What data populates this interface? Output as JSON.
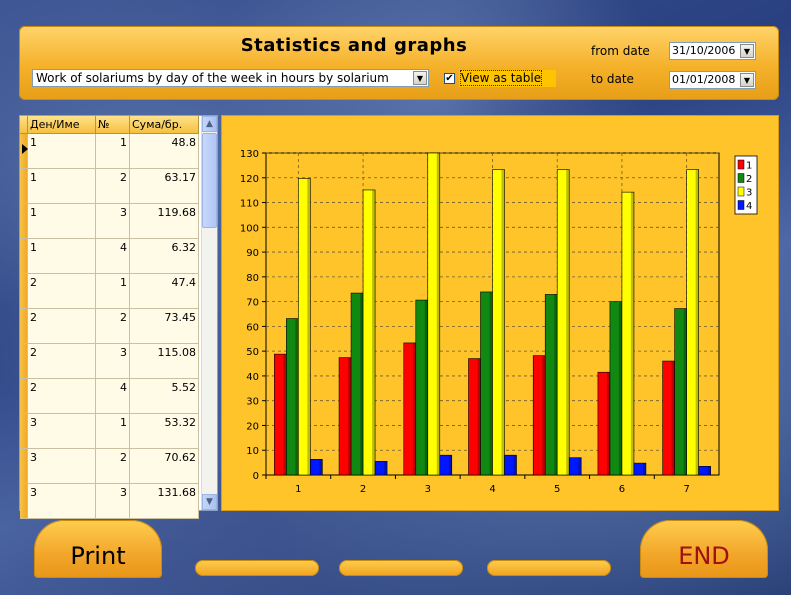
{
  "header": {
    "title": "Statistics and graphs",
    "report_value": "Work of solariums by day of the week in hours by solarium",
    "view_as_table_label": "View as table",
    "view_as_table_checked": true,
    "from_label": "from date",
    "from_value": "31/10/2006",
    "to_label": "to date",
    "to_value": "01/01/2008"
  },
  "table": {
    "columns": [
      "Ден/Име",
      "№",
      "Сума/бр."
    ],
    "rows": [
      [
        "1",
        "1",
        "48.8"
      ],
      [
        "1",
        "2",
        "63.17"
      ],
      [
        "1",
        "3",
        "119.68"
      ],
      [
        "1",
        "4",
        "6.32"
      ],
      [
        "2",
        "1",
        "47.4"
      ],
      [
        "2",
        "2",
        "73.45"
      ],
      [
        "2",
        "3",
        "115.08"
      ],
      [
        "2",
        "4",
        "5.52"
      ],
      [
        "3",
        "1",
        "53.32"
      ],
      [
        "3",
        "2",
        "70.62"
      ],
      [
        "3",
        "3",
        "131.68"
      ]
    ]
  },
  "chart_data": {
    "type": "bar",
    "categories": [
      "1",
      "2",
      "3",
      "4",
      "5",
      "6",
      "7"
    ],
    "series": [
      {
        "name": "1",
        "color": "#ff0000",
        "values": [
          48.8,
          47.4,
          53.32,
          47.0,
          48.2,
          41.5,
          46.0
        ]
      },
      {
        "name": "2",
        "color": "#118811",
        "values": [
          63.17,
          73.45,
          70.62,
          73.9,
          72.9,
          70.0,
          67.2
        ]
      },
      {
        "name": "3",
        "color": "#ffff00",
        "values": [
          119.68,
          115.08,
          131.68,
          123.3,
          123.3,
          114.2,
          123.3
        ]
      },
      {
        "name": "4",
        "color": "#0018ff",
        "values": [
          6.32,
          5.52,
          8.0,
          8.0,
          7.0,
          4.8,
          3.5
        ]
      }
    ],
    "yticks": [
      0,
      10,
      20,
      30,
      40,
      50,
      60,
      70,
      80,
      90,
      100,
      110,
      120,
      130
    ],
    "ylim": [
      0,
      130
    ],
    "grid": true,
    "legend": "top-right"
  },
  "buttons": {
    "print": "Print",
    "end": "END"
  }
}
